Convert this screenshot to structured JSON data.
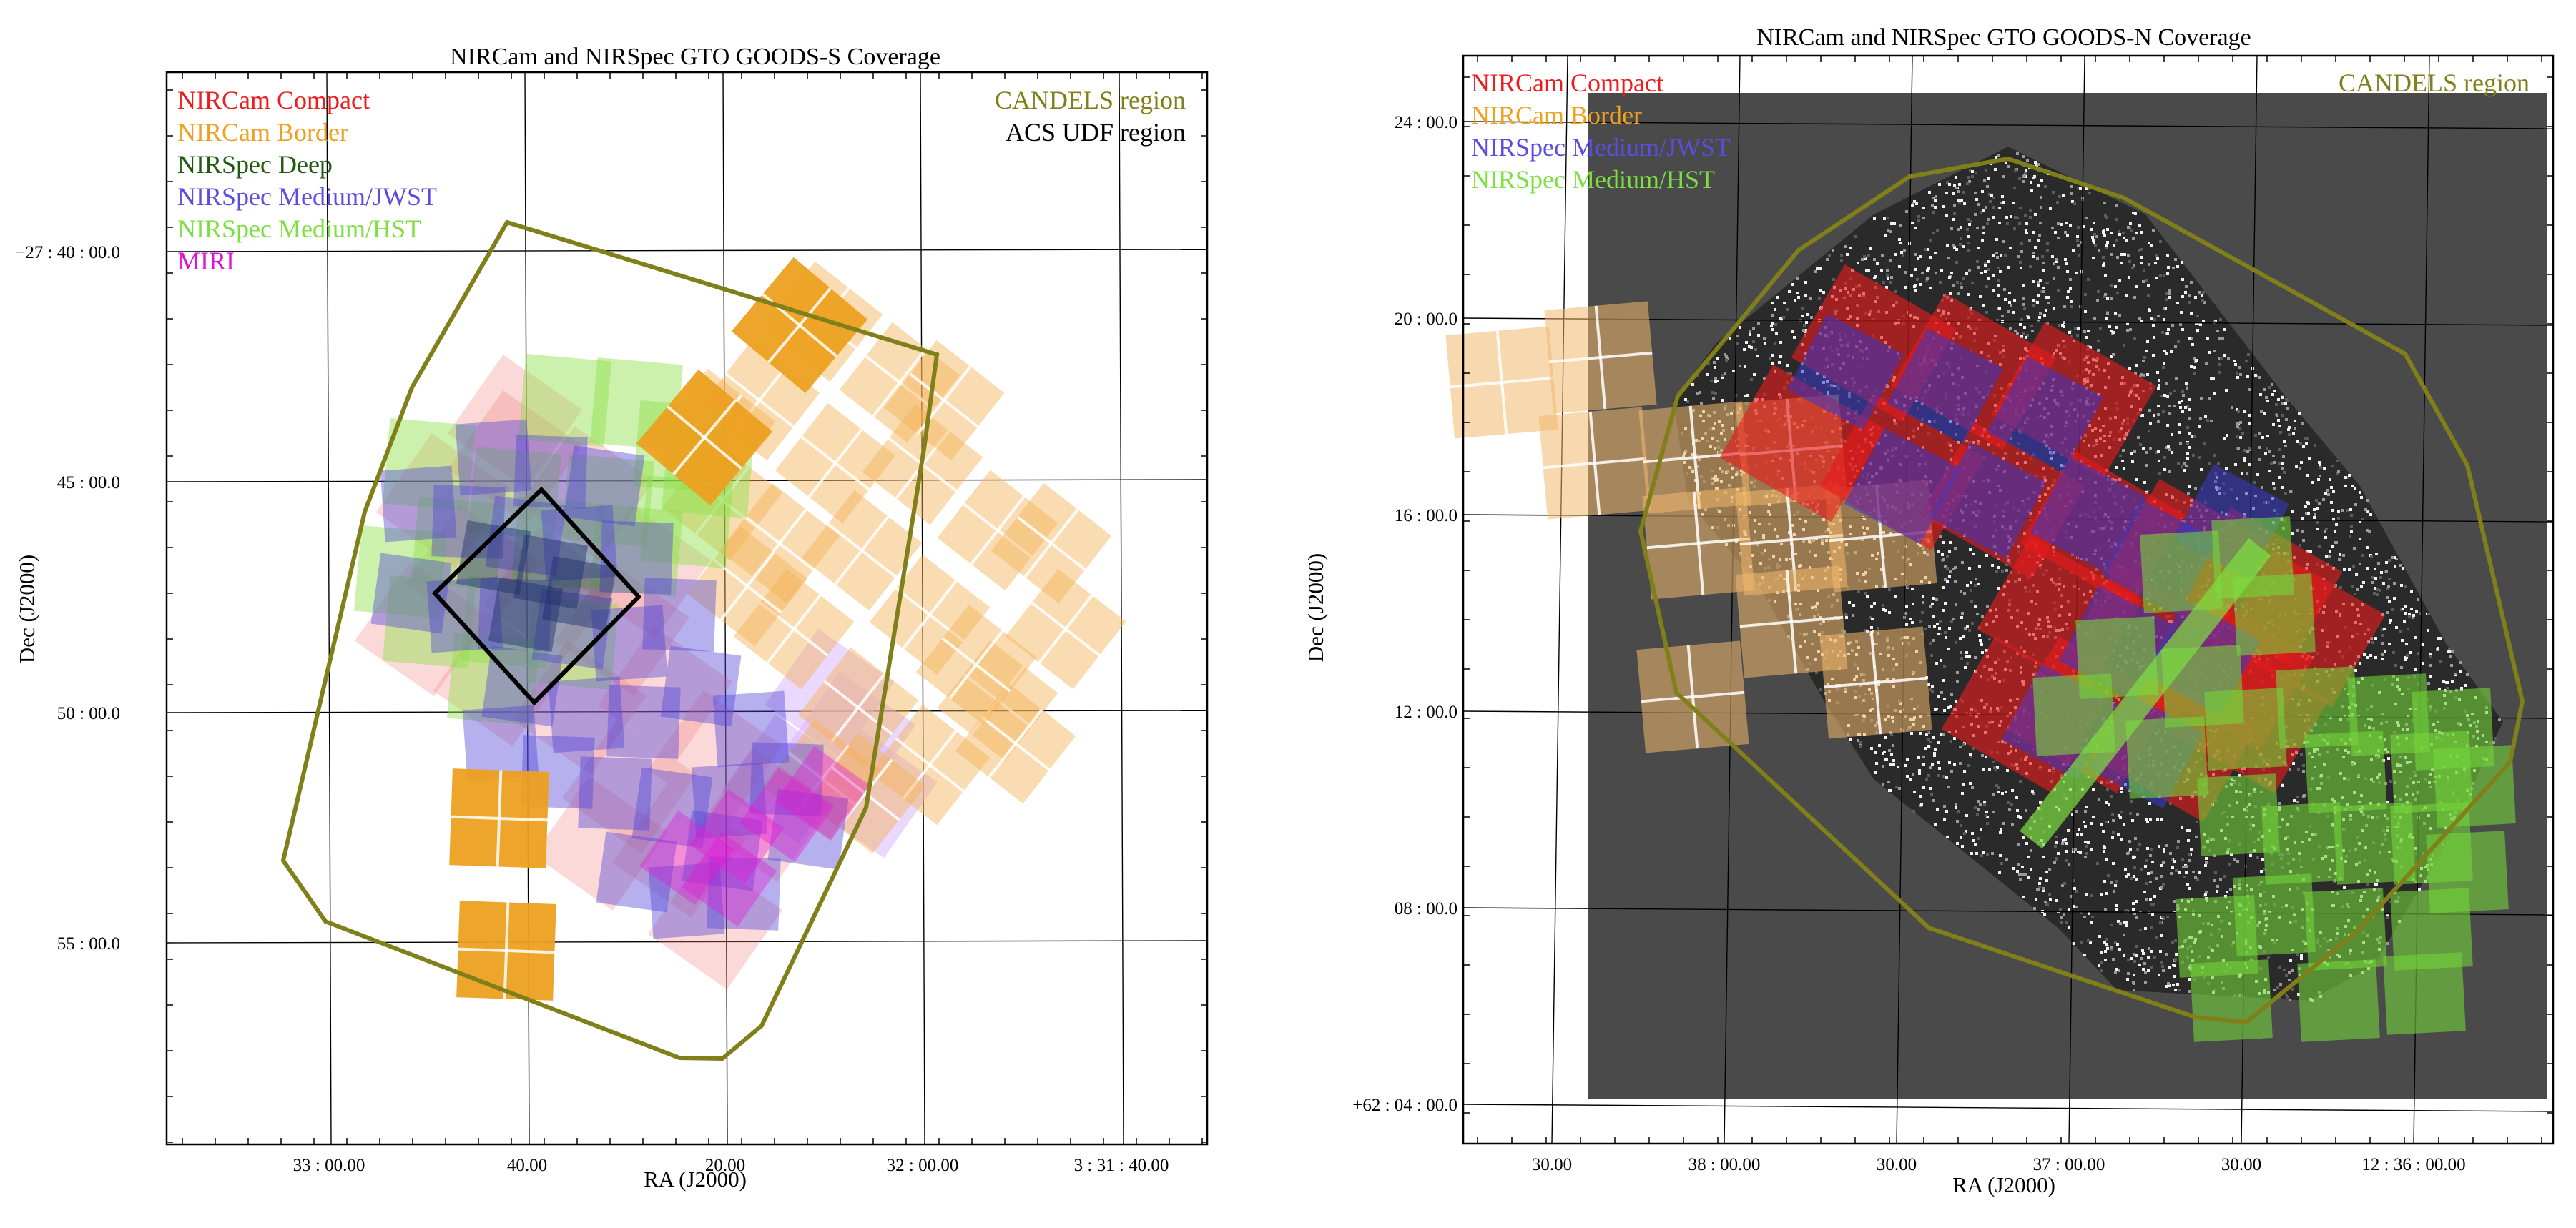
{
  "colors": {
    "nircam_compact": "#ee1c1c",
    "nircam_border": "#f0a020",
    "nirspec_deep": "#1f5a10",
    "nirspec_medium_jwst": "#5a4de0",
    "nirspec_medium_hst": "#7ee040",
    "miri": "#e010d8",
    "candels": "#807f1a",
    "acs_udf": "#000000",
    "sky_background": "#4a4a4a"
  },
  "panels": [
    {
      "title": "NIRCam and NIRSpec GTO GOODS-S Coverage",
      "xlabel": "RA (J2000)",
      "ylabel": "Dec (J2000)",
      "x_tick_labels": [
        "33 : 00.00",
        "40.00",
        "20.00",
        "32 : 00.00",
        "3 : 31 : 40.00"
      ],
      "y_tick_labels": [
        "−27 : 40 : 00.0",
        "45 : 00.0",
        "50 : 00.0",
        "55 : 00.0"
      ],
      "legend_left": [
        "NIRCam Compact",
        "NIRCam Border",
        "NIRSpec Deep",
        "NIRSpec Medium/JWST",
        "NIRSpec Medium/HST",
        "MIRI"
      ],
      "legend_right": [
        "CANDELS region",
        "ACS UDF region"
      ]
    },
    {
      "title": "NIRCam and NIRSpec GTO GOODS-N Coverage",
      "xlabel": "RA (J2000)",
      "ylabel": "Dec (J2000)",
      "x_tick_labels": [
        "30.00",
        "38 : 00.00",
        "30.00",
        "37 : 00.00",
        "30.00",
        "12 : 36 : 00.00"
      ],
      "y_tick_labels": [
        "24 : 00.0",
        "20 : 00.0",
        "16 : 00.0",
        "12 : 00.0",
        "08 : 00.0",
        "+62 : 04 : 00.0"
      ],
      "legend_left": [
        "NIRCam Compact",
        "NIRCam Border",
        "NIRSpec Medium/JWST",
        "NIRSpec Medium/HST"
      ],
      "legend_right": [
        "CANDELS region"
      ]
    }
  ]
}
